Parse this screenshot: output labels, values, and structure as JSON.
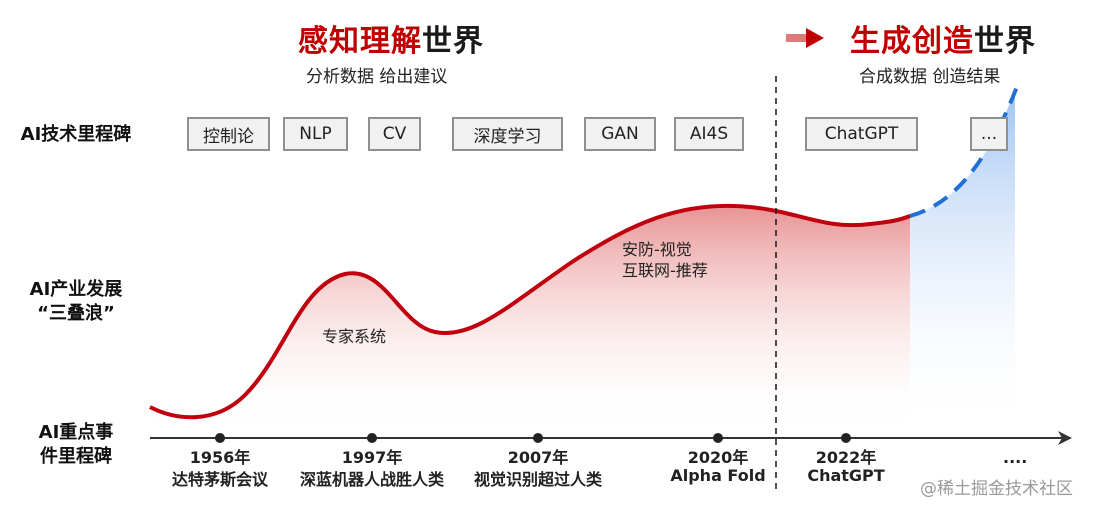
{
  "header": {
    "left_title_highlight": "感知理解",
    "left_title_rest": "世界",
    "left_subtitle": "分析数据 给出建议",
    "right_title_highlight": "生成创造",
    "right_title_rest": "世界",
    "right_subtitle": "合成数据 创造结果"
  },
  "row_labels": {
    "tech": "AI技术里程碑",
    "industry_line1": "AI产业发展",
    "industry_line2": "“三叠浪”",
    "events_line1": "AI重点事",
    "events_line2": "件里程碑"
  },
  "tech_milestones": [
    "控制论",
    "NLP",
    "CV",
    "深度学习",
    "GAN",
    "AI4S",
    "ChatGPT",
    "..."
  ],
  "wave_labels": {
    "first": "专家系统",
    "third_line1": "安防-视觉",
    "third_line2": "互联网-推荐"
  },
  "events": [
    {
      "year": "1956年",
      "name": "达特茅斯会议"
    },
    {
      "year": "1997年",
      "name": "深蓝机器人战胜人类"
    },
    {
      "year": "2007年",
      "name": "视觉识别超过人类"
    },
    {
      "year": "2020年",
      "name": "Alpha Fold"
    },
    {
      "year": "2022年",
      "name": "ChatGPT"
    }
  ],
  "timeline_end": "....",
  "watermark": "@稀土掘金技术社区",
  "colors": {
    "accent_red": "#c00000",
    "curve_red": "#c0000e",
    "future_blue": "#1f6fd6"
  }
}
